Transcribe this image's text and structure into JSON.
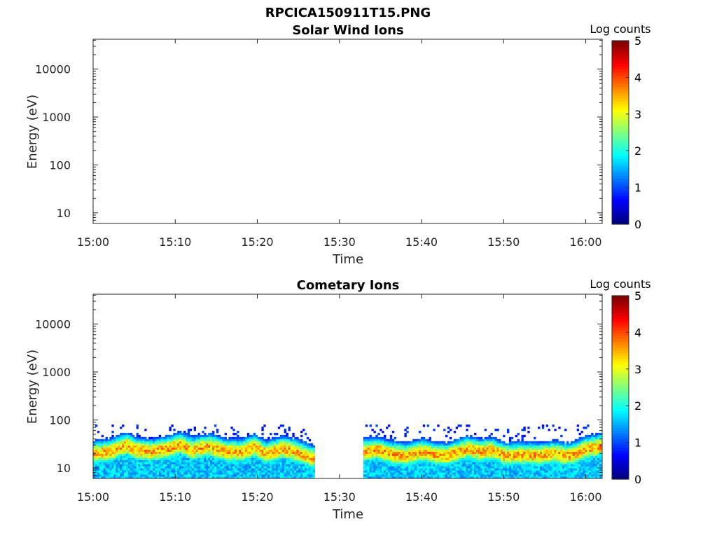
{
  "figure_title": "RPCICA150911T15.PNG",
  "chart_data": [
    {
      "type": "heatmap",
      "title": "Solar Wind Ions",
      "xlabel": "Time",
      "ylabel": "Energy (eV)",
      "x_ticks": [
        "15:00",
        "15:10",
        "15:20",
        "15:30",
        "15:40",
        "15:50",
        "16:00"
      ],
      "x_range_minutes": [
        0,
        62
      ],
      "y_scale": "log",
      "y_ticks": [
        10,
        100,
        1000,
        10000
      ],
      "y_tick_labels": [
        "10",
        "100",
        "1000",
        "10000"
      ],
      "y_range": [
        6,
        42000
      ],
      "colorbar": {
        "label": "Log counts",
        "range": [
          0,
          5
        ],
        "ticks": [
          "0",
          "1",
          "2",
          "3",
          "4",
          "5"
        ],
        "colormap": "jet"
      },
      "segments": []
    },
    {
      "type": "heatmap",
      "title": "Cometary Ions",
      "xlabel": "Time",
      "ylabel": "Energy (eV)",
      "x_ticks": [
        "15:00",
        "15:10",
        "15:20",
        "15:30",
        "15:40",
        "15:50",
        "16:00"
      ],
      "x_range_minutes": [
        0,
        62
      ],
      "y_scale": "log",
      "y_ticks": [
        10,
        100,
        1000,
        10000
      ],
      "y_tick_labels": [
        "10",
        "100",
        "1000",
        "10000"
      ],
      "y_range": [
        6,
        42000
      ],
      "colorbar": {
        "label": "Log counts",
        "range": [
          0,
          5
        ],
        "ticks": [
          "0",
          "1",
          "2",
          "3",
          "4",
          "5"
        ],
        "colormap": "jet"
      },
      "data_gap_minutes": [
        26.8,
        32.9
      ],
      "segments": [
        {
          "start_min": 0,
          "end_min": 26.8
        },
        {
          "start_min": 32.9,
          "end_min": 61.8
        }
      ],
      "peak_energy_profile": [
        [
          0,
          20
        ],
        [
          2,
          22
        ],
        [
          4,
          30
        ],
        [
          5,
          24
        ],
        [
          7,
          22
        ],
        [
          9,
          25
        ],
        [
          10.5,
          30
        ],
        [
          12,
          24
        ],
        [
          14,
          28
        ],
        [
          16,
          22
        ],
        [
          18,
          22
        ],
        [
          19.5,
          27
        ],
        [
          21,
          20
        ],
        [
          23,
          25
        ],
        [
          24.5,
          22
        ],
        [
          26.5,
          16
        ],
        [
          33,
          22
        ],
        [
          34.5,
          24
        ],
        [
          36,
          20
        ],
        [
          38,
          18
        ],
        [
          40,
          22
        ],
        [
          41.5,
          19
        ],
        [
          43,
          18
        ],
        [
          45.5,
          25
        ],
        [
          47,
          22
        ],
        [
          48.5,
          24
        ],
        [
          50,
          18
        ],
        [
          52,
          19
        ],
        [
          54,
          18
        ],
        [
          56,
          20
        ],
        [
          58,
          18
        ],
        [
          60,
          25
        ],
        [
          61.5,
          28
        ]
      ],
      "max_log_counts_observed": 3.8
    }
  ]
}
